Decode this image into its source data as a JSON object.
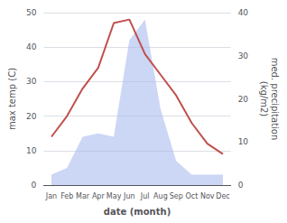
{
  "chart_data": {
    "type": "line",
    "categories": [
      "Jan",
      "Feb",
      "Mar",
      "Apr",
      "May",
      "Jun",
      "Jul",
      "Aug",
      "Sep",
      "Oct",
      "Nov",
      "Dec"
    ],
    "series": [
      {
        "type": "area",
        "color": "#aabbee",
        "values": [
          3,
          5,
          14,
          15,
          14,
          42,
          48,
          22,
          7,
          3,
          3,
          3
        ]
      },
      {
        "type": "line",
        "color": "#c0504d",
        "values": [
          14,
          20,
          28,
          34,
          47,
          48,
          38,
          32,
          26,
          18,
          12,
          9
        ]
      }
    ],
    "xlabel": "date (month)",
    "ylabel": "max temp (C)",
    "y2label": "med. precipitation\n(kg/m2)",
    "ylim": [
      0,
      50
    ],
    "yticks": [
      0,
      10,
      20,
      30,
      40,
      50
    ],
    "y2lim": [
      0,
      40
    ],
    "y2ticks": [
      0,
      10,
      20,
      30,
      40
    ],
    "grid": true
  }
}
